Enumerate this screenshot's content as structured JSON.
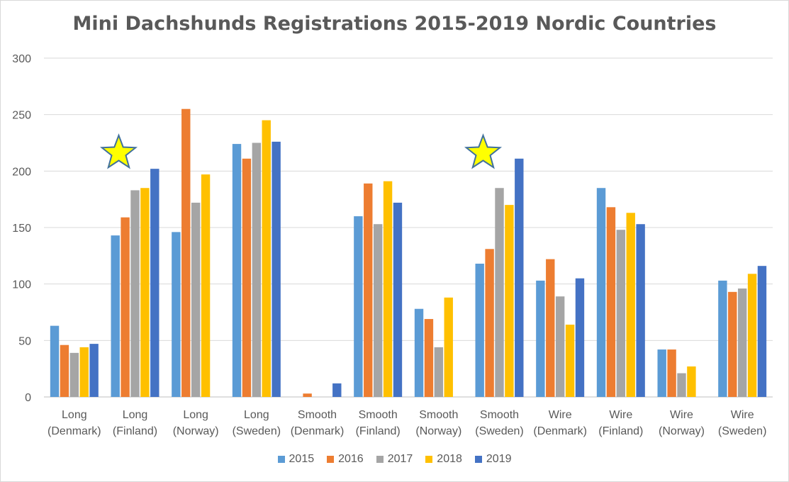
{
  "chart_data": {
    "type": "bar",
    "title": "Mini Dachshunds Registrations 2015-2019 Nordic Countries",
    "categories": [
      [
        "Long",
        "(Denmark)"
      ],
      [
        "Long",
        "(Finland)"
      ],
      [
        "Long",
        "(Norway)"
      ],
      [
        "Long",
        "(Sweden)"
      ],
      [
        "Smooth",
        "(Denmark)"
      ],
      [
        "Smooth",
        "(Finland)"
      ],
      [
        "Smooth",
        "(Norway)"
      ],
      [
        "Smooth",
        "(Sweden)"
      ],
      [
        "Wire",
        "(Denmark)"
      ],
      [
        "Wire",
        "(Finland)"
      ],
      [
        "Wire",
        "(Norway)"
      ],
      [
        "Wire",
        "(Sweden)"
      ]
    ],
    "series": [
      {
        "name": "2015",
        "color": "#5b9bd5",
        "values": [
          63,
          143,
          146,
          224,
          0,
          160,
          78,
          118,
          103,
          185,
          42,
          103
        ]
      },
      {
        "name": "2016",
        "color": "#ed7d31",
        "values": [
          46,
          159,
          255,
          211,
          3,
          189,
          69,
          131,
          122,
          168,
          42,
          93
        ]
      },
      {
        "name": "2017",
        "color": "#a5a5a5",
        "values": [
          39,
          183,
          172,
          225,
          0,
          153,
          44,
          185,
          89,
          148,
          21,
          96
        ]
      },
      {
        "name": "2018",
        "color": "#ffc000",
        "values": [
          44,
          185,
          197,
          245,
          0,
          191,
          88,
          170,
          64,
          163,
          27,
          109
        ]
      },
      {
        "name": "2019",
        "color": "#4472c4",
        "values": [
          47,
          202,
          0,
          226,
          12,
          172,
          0,
          211,
          105,
          153,
          0,
          116
        ]
      }
    ],
    "ylim": [
      0,
      300
    ],
    "yticks": [
      0,
      50,
      100,
      150,
      200,
      250,
      300
    ],
    "grid": true,
    "legend_position": "bottom",
    "annotations": [
      {
        "type": "star",
        "category_index": 1,
        "color": "#ffff00",
        "stroke": "#41719c"
      },
      {
        "type": "star",
        "category_index": 7,
        "color": "#ffff00",
        "stroke": "#41719c"
      }
    ]
  }
}
